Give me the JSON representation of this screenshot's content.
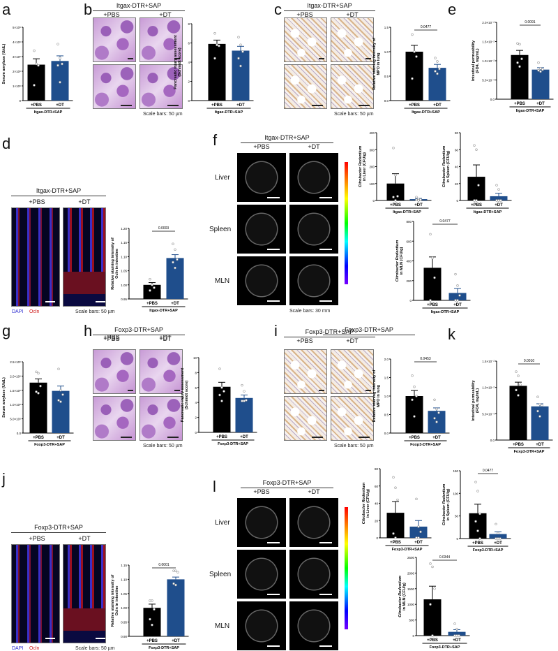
{
  "panels": {
    "a": "a",
    "b": "b",
    "c": "c",
    "d": "d",
    "e": "e",
    "f": "f",
    "g": "g",
    "h": "h",
    "i": "i",
    "j": "j",
    "k": "k",
    "l": "l"
  },
  "groups": {
    "itgax": "Itgax-DTR+SAP",
    "foxp3": "Foxp3-DTR+SAP",
    "pbs": "+PBS",
    "dt": "+DT"
  },
  "scale": {
    "um50": "Scale bars: 50 µm",
    "mm30": "Scale bars: 30 mm"
  },
  "stains": {
    "dapi": "DAPI",
    "ocln": "Ocln"
  },
  "organs": {
    "liver": "Liver",
    "spleen": "Spleen",
    "mln": "MLN"
  },
  "colors": {
    "pbs": "#000000",
    "dt": "#1f4e8c",
    "dapi": "#2a2ad0",
    "ocln": "#d02020"
  },
  "chart_data": [
    {
      "id": "a",
      "type": "bar",
      "categories": [
        "+PBS",
        "+DT"
      ],
      "group": "Itgax-DTR+SAP",
      "ylabel": [
        "Serum amylase (U/dL)"
      ],
      "ylim": [
        0,
        5000000
      ],
      "ticks": [
        0,
        1000000,
        2000000,
        3000000,
        4000000,
        5000000
      ],
      "tick_labels": [
        "0",
        "1×10⁶",
        "2×10⁶",
        "3×10⁶",
        "4×10⁶",
        "5×10⁶"
      ],
      "values": [
        2450000,
        2700000
      ],
      "errors": [
        400000,
        350000
      ],
      "points": [
        [
          3400000,
          2500000,
          2400000,
          1050000
        ],
        [
          3850000,
          2900000,
          2500000,
          2400000,
          1250000
        ]
      ],
      "pvalue": ""
    },
    {
      "id": "b",
      "type": "bar",
      "categories": [
        "+PBS",
        "+DT"
      ],
      "group": "Itgax-DTR+SAP",
      "ylabel": [
        "Pancreatic injury assessment",
        "(Schmidt score)"
      ],
      "ylim": [
        0,
        8
      ],
      "ticks": [
        0,
        2,
        4,
        6,
        8
      ],
      "tick_labels": [
        "0",
        "2",
        "4",
        "6",
        "8"
      ],
      "values": [
        5.9,
        5.2
      ],
      "errors": [
        0.4,
        0.45
      ],
      "points": [
        [
          7,
          5.8,
          5.7,
          4.4
        ],
        [
          6.6,
          5.8,
          5.1,
          4.4,
          3.6
        ]
      ],
      "pvalue": ""
    },
    {
      "id": "c",
      "type": "bar",
      "categories": [
        "+PBS",
        "+DT"
      ],
      "group": "Itgax-DTR+SAP",
      "ylabel": [
        "Relative staining intensity of",
        "MPO in lung"
      ],
      "ylim": [
        0,
        1.5
      ],
      "ticks": [
        0,
        0.5,
        1.0,
        1.5
      ],
      "tick_labels": [
        "0.0",
        "0.5",
        "1.0",
        "1.5"
      ],
      "values": [
        1.0,
        0.67
      ],
      "errors": [
        0.13,
        0.07
      ],
      "points": [
        [
          1.35,
          1.0,
          0.9,
          0.45
        ],
        [
          0.87,
          0.8,
          0.65,
          0.6,
          0.55
        ]
      ],
      "pvalue": "0.0477"
    },
    {
      "id": "e",
      "type": "bar",
      "categories": [
        "+PBS",
        "+DT"
      ],
      "group": "Itgax-DTR+SAP",
      "ylabel": [
        "Intestinal permeability",
        "(FD4, mg/mL)"
      ],
      "ylim": [
        0,
        0.02
      ],
      "ticks": [
        0,
        0.005,
        0.01,
        0.015,
        0.02
      ],
      "tick_labels": [
        "0.0",
        "5.0×10⁻³",
        "1.0×10⁻²",
        "1.5×10⁻²",
        "2.0×10⁻²"
      ],
      "values": [
        0.0115,
        0.0077
      ],
      "errors": [
        0.0012,
        0.0005
      ],
      "points": [
        [
          0.0145,
          0.0143,
          0.0105,
          0.0095,
          0.0085
        ],
        [
          0.0095,
          0.008,
          0.0077,
          0.0075,
          0.0072
        ]
      ],
      "pvalue": "0.0091"
    },
    {
      "id": "d",
      "type": "bar",
      "categories": [
        "+PBS",
        "+DT"
      ],
      "group": "Itgax-DTR+SAP",
      "ylabel": [
        "Relative staining intensity of",
        "Ocln in intestine"
      ],
      "ylim": [
        0.95,
        1.2
      ],
      "ticks": [
        0.95,
        1.0,
        1.05,
        1.1,
        1.15,
        1.2
      ],
      "tick_labels": [
        "0.95",
        "1.00",
        "1.05",
        "1.10",
        "1.15",
        "1.20"
      ],
      "values": [
        1.0,
        1.095
      ],
      "errors": [
        0.008,
        0.012
      ],
      "points": [
        [
          1.02,
          1.0,
          0.99,
          0.98
        ],
        [
          1.145,
          1.125,
          1.09,
          1.08,
          1.06
        ]
      ],
      "pvalue": "0.0003"
    },
    {
      "id": "f-liver",
      "type": "bar",
      "categories": [
        "+PBS",
        "+DT"
      ],
      "group": "Itgax-DTR+SAP",
      "ylabel": [
        "Citrobacter Rodentium",
        "in Liver (CFU/g)"
      ],
      "ylim": [
        0,
        400
      ],
      "ticks": [
        0,
        100,
        200,
        300,
        400
      ],
      "tick_labels": [
        "0",
        "100",
        "200",
        "300",
        "400"
      ],
      "values": [
        100,
        8
      ],
      "errors": [
        58,
        4
      ],
      "points": [
        [
          310,
          150,
          25,
          20,
          0
        ],
        [
          20,
          8,
          5,
          3,
          0
        ]
      ],
      "pvalue": ""
    },
    {
      "id": "f-spleen",
      "type": "bar",
      "categories": [
        "+PBS",
        "+DT"
      ],
      "group": "Itgax-DTR+SAP",
      "ylabel": [
        "Citrobacter Rodentium",
        "in Spleen (CFU/g)"
      ],
      "ylim": [
        0,
        80
      ],
      "ticks": [
        0,
        20,
        40,
        60,
        80
      ],
      "tick_labels": [
        "0",
        "20",
        "40",
        "60",
        "80"
      ],
      "values": [
        28,
        5
      ],
      "errors": [
        14,
        3.5
      ],
      "points": [
        [
          65,
          60,
          18,
          0,
          0
        ],
        [
          18,
          13,
          0,
          0,
          0
        ]
      ],
      "pvalue": ""
    },
    {
      "id": "f-mln",
      "type": "bar",
      "categories": [
        "+PBS",
        "+DT"
      ],
      "group": "Itgax-DTR+SAP",
      "ylabel": [
        "Citrobacter Rodentium",
        "in MLN (CFU/g)"
      ],
      "ylim": [
        0,
        800
      ],
      "ticks": [
        0,
        200,
        400,
        600,
        800
      ],
      "tick_labels": [
        "0",
        "200",
        "400",
        "600",
        "800"
      ],
      "values": [
        330,
        75
      ],
      "errors": [
        110,
        45
      ],
      "points": [
        [
          670,
          430,
          230,
          0
        ],
        [
          265,
          150,
          50,
          0,
          0
        ]
      ],
      "pvalue": "0.0477"
    },
    {
      "id": "g",
      "type": "bar",
      "categories": [
        "+PBS",
        "+DT"
      ],
      "group": "Foxp3-DTR+SAP",
      "ylabel": [
        "Serum amylase (U/dL)"
      ],
      "ylim": [
        0,
        2500000
      ],
      "ticks": [
        0,
        500000,
        1000000,
        1500000,
        2000000,
        2500000
      ],
      "tick_labels": [
        "0.0",
        "5.0×10⁵",
        "1.0×10⁶",
        "1.5×10⁶",
        "2.0×10⁶",
        "2.5×10⁶"
      ],
      "values": [
        1770000,
        1480000
      ],
      "errors": [
        130000,
        170000
      ],
      "points": [
        [
          2150000,
          2100000,
          1650000,
          1450000,
          1400000
        ],
        [
          2250000,
          1500000,
          1350000,
          1150000,
          1100000
        ]
      ],
      "pvalue": ""
    },
    {
      "id": "h",
      "type": "bar",
      "categories": [
        "+PBS",
        "+DT"
      ],
      "group": "Foxp3-DTR+SAP",
      "ylabel": [
        "Pancreatic injury assessment",
        "(Schmidt score)"
      ],
      "ylim": [
        0,
        10
      ],
      "ticks": [
        0,
        2,
        4,
        6,
        8,
        10
      ],
      "tick_labels": [
        "0",
        "2",
        "4",
        "6",
        "8",
        "10"
      ],
      "values": [
        6.1,
        4.6
      ],
      "errors": [
        0.6,
        0.4
      ],
      "points": [
        [
          8.5,
          6,
          5.5,
          5,
          4.2
        ],
        [
          6.3,
          5.5,
          4.3,
          4.2,
          4.2
        ]
      ],
      "pvalue": ""
    },
    {
      "id": "i",
      "type": "bar",
      "categories": [
        "+PBS",
        "+DT"
      ],
      "group": "Foxp3-DTR+SAP",
      "ylabel": [
        "Relative staining intensity of",
        "MPO in lung"
      ],
      "ylim": [
        0,
        2.0
      ],
      "ticks": [
        0,
        0.5,
        1.0,
        1.5,
        2.0
      ],
      "tick_labels": [
        "0.0",
        "0.5",
        "1.0",
        "1.5",
        "2.0"
      ],
      "values": [
        1.0,
        0.6
      ],
      "errors": [
        0.15,
        0.08
      ],
      "points": [
        [
          1.55,
          1.25,
          1.0,
          0.9,
          0.45
        ],
        [
          0.9,
          0.65,
          0.55,
          0.4,
          0.3
        ]
      ],
      "pvalue": "0.0453"
    },
    {
      "id": "k",
      "type": "bar",
      "categories": [
        "+PBS",
        "+DT"
      ],
      "group": "Foxp3-DTR+SAP",
      "ylabel": [
        "Intestinal permeability",
        "(FD4, mg/mL)"
      ],
      "ylim": [
        0,
        0.015
      ],
      "ticks": [
        0,
        0.005,
        0.01,
        0.015
      ],
      "tick_labels": [
        "0.0",
        "5.0×10⁻³",
        "1.0×10⁻²",
        "1.5×10⁻²"
      ],
      "values": [
        0.0103,
        0.0064
      ],
      "errors": [
        0.0007,
        0.0005
      ],
      "points": [
        [
          0.013,
          0.0122,
          0.0105,
          0.0095,
          0.0085
        ],
        [
          0.0082,
          0.0068,
          0.0066,
          0.0055,
          0.0045
        ]
      ],
      "pvalue": "0.0010"
    },
    {
      "id": "j",
      "type": "bar",
      "categories": [
        "+PBS",
        "+DT"
      ],
      "group": "Foxp3-DTR+SAP",
      "ylabel": [
        "Relative staining intensity of",
        "Ocln in intestine"
      ],
      "ylim": [
        0.9,
        1.15
      ],
      "ticks": [
        0.9,
        0.95,
        1.0,
        1.05,
        1.1,
        1.15
      ],
      "tick_labels": [
        "0.90",
        "0.95",
        "1.00",
        "1.05",
        "1.10",
        "1.15"
      ],
      "values": [
        1.0,
        1.1
      ],
      "errors": [
        0.013,
        0.008
      ],
      "points": [
        [
          1.025,
          1.025,
          0.995,
          0.96,
          0.94
        ],
        [
          1.13,
          1.13,
          1.125,
          1.085,
          1.08
        ]
      ],
      "pvalue": "0.0001"
    },
    {
      "id": "l-liver",
      "type": "bar",
      "categories": [
        "+PBS",
        "+DT"
      ],
      "group": "Foxp3-DTR+SAP",
      "ylabel": [
        "Citrobacter Rodentium",
        "in Liver (CFU/g)"
      ],
      "ylim": [
        0,
        80
      ],
      "ticks": [
        0,
        20,
        40,
        60,
        80
      ],
      "tick_labels": [
        "0",
        "20",
        "40",
        "60",
        "80"
      ],
      "values": [
        29,
        13
      ],
      "errors": [
        13,
        7
      ],
      "points": [
        [
          70,
          58,
          44,
          5,
          0
        ],
        [
          45,
          13,
          7,
          0,
          0
        ]
      ],
      "pvalue": ""
    },
    {
      "id": "l-spleen",
      "type": "bar",
      "categories": [
        "+PBS",
        "+DT"
      ],
      "group": "Foxp3-DTR+SAP",
      "ylabel": [
        "Citrobacter Rodentium",
        "in Spleen (CFU/g)"
      ],
      "ylim": [
        0,
        150
      ],
      "ticks": [
        0,
        50,
        100,
        150
      ],
      "tick_labels": [
        "0",
        "50",
        "100",
        "150"
      ],
      "values": [
        56,
        10
      ],
      "errors": [
        20,
        5
      ],
      "points": [
        [
          125,
          105,
          55,
          38,
          17,
          0
        ],
        [
          32,
          12,
          0,
          0,
          0
        ]
      ],
      "pvalue": "0.0477"
    },
    {
      "id": "l-mln",
      "type": "bar",
      "categories": [
        "+PBS",
        "+DT"
      ],
      "group": "Foxp3-DTR+SAP",
      "ylabel": [
        "Citrobacter Rodentium",
        "in MLN (CFU/g)"
      ],
      "ylim": [
        0,
        2500
      ],
      "ticks": [
        0,
        500,
        1000,
        1500,
        2000,
        2500
      ],
      "tick_labels": [
        "0",
        "500",
        "1000",
        "1500",
        "2000",
        "2500"
      ],
      "values": [
        1160,
        120
      ],
      "errors": [
        420,
        70
      ],
      "points": [
        [
          2300,
          2200,
          1500,
          1000,
          0
        ],
        [
          380,
          210,
          0,
          0,
          0
        ]
      ],
      "pvalue": "0.0344"
    }
  ]
}
